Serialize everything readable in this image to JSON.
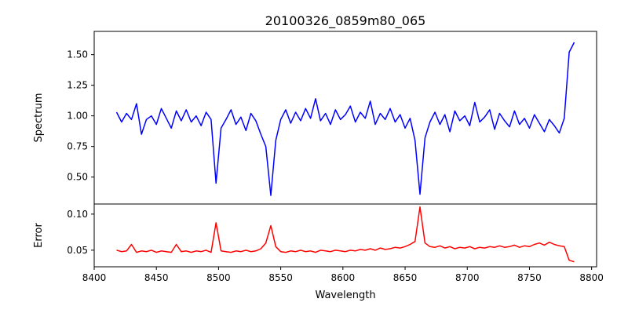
{
  "chart_data": {
    "type": "line",
    "title": "20100326_0859m80_065",
    "xlabel": "Wavelength",
    "xlim": [
      8400,
      8804
    ],
    "xticks": [
      8400,
      8450,
      8500,
      8550,
      8600,
      8650,
      8700,
      8750,
      8800
    ],
    "grid": false,
    "panels": [
      {
        "ylabel": "Spectrum",
        "ylim": [
          0.28,
          1.69
        ],
        "yticks": [
          "0.50",
          "0.75",
          "1.00",
          "1.25",
          "1.50"
        ],
        "color": "#0000ff",
        "series_name": "Spectrum"
      },
      {
        "ylabel": "Error",
        "ylim": [
          0.027,
          0.114
        ],
        "yticks": [
          "0.05",
          "0.10"
        ],
        "color": "#ff0000",
        "series_name": "Error"
      }
    ],
    "x": [
      8418,
      8422,
      8426,
      8430,
      8434,
      8438,
      8442,
      8446,
      8450,
      8454,
      8458,
      8462,
      8466,
      8470,
      8474,
      8478,
      8482,
      8486,
      8490,
      8494,
      8498,
      8502,
      8506,
      8510,
      8514,
      8518,
      8522,
      8526,
      8530,
      8534,
      8538,
      8542,
      8546,
      8550,
      8554,
      8558,
      8562,
      8566,
      8570,
      8574,
      8578,
      8582,
      8586,
      8590,
      8594,
      8598,
      8602,
      8606,
      8610,
      8614,
      8618,
      8622,
      8626,
      8630,
      8634,
      8638,
      8642,
      8646,
      8650,
      8654,
      8658,
      8662,
      8666,
      8670,
      8674,
      8678,
      8682,
      8686,
      8690,
      8694,
      8698,
      8702,
      8706,
      8710,
      8714,
      8718,
      8722,
      8726,
      8730,
      8734,
      8738,
      8742,
      8746,
      8750,
      8754,
      8758,
      8762,
      8766,
      8770,
      8774,
      8778,
      8782,
      8786
    ],
    "spectrum": [
      1.03,
      0.95,
      1.02,
      0.97,
      1.1,
      0.85,
      0.97,
      1.0,
      0.93,
      1.06,
      0.98,
      0.9,
      1.04,
      0.96,
      1.05,
      0.95,
      1.0,
      0.92,
      1.03,
      0.97,
      0.45,
      0.9,
      0.97,
      1.05,
      0.93,
      0.99,
      0.88,
      1.02,
      0.96,
      0.85,
      0.75,
      0.35,
      0.8,
      0.97,
      1.05,
      0.94,
      1.03,
      0.96,
      1.06,
      0.98,
      1.14,
      0.96,
      1.02,
      0.93,
      1.05,
      0.97,
      1.01,
      1.08,
      0.95,
      1.03,
      0.98,
      1.12,
      0.93,
      1.02,
      0.97,
      1.06,
      0.95,
      1.01,
      0.9,
      0.98,
      0.8,
      0.36,
      0.82,
      0.95,
      1.03,
      0.93,
      1.01,
      0.87,
      1.04,
      0.96,
      1.0,
      0.92,
      1.11,
      0.95,
      0.99,
      1.05,
      0.89,
      1.02,
      0.96,
      0.91,
      1.04,
      0.93,
      0.98,
      0.9,
      1.01,
      0.94,
      0.87,
      0.97,
      0.92,
      0.86,
      0.98,
      1.52,
      1.6
    ],
    "error": [
      0.05,
      0.048,
      0.049,
      0.058,
      0.047,
      0.049,
      0.048,
      0.05,
      0.047,
      0.049,
      0.048,
      0.047,
      0.058,
      0.048,
      0.049,
      0.047,
      0.049,
      0.048,
      0.05,
      0.047,
      0.088,
      0.049,
      0.048,
      0.047,
      0.049,
      0.048,
      0.05,
      0.048,
      0.049,
      0.052,
      0.06,
      0.084,
      0.055,
      0.048,
      0.047,
      0.049,
      0.048,
      0.05,
      0.048,
      0.049,
      0.047,
      0.05,
      0.049,
      0.048,
      0.05,
      0.049,
      0.048,
      0.05,
      0.049,
      0.051,
      0.05,
      0.052,
      0.05,
      0.053,
      0.051,
      0.052,
      0.054,
      0.053,
      0.055,
      0.058,
      0.062,
      0.11,
      0.06,
      0.055,
      0.054,
      0.056,
      0.053,
      0.055,
      0.052,
      0.054,
      0.053,
      0.055,
      0.052,
      0.054,
      0.053,
      0.055,
      0.054,
      0.056,
      0.054,
      0.055,
      0.057,
      0.054,
      0.056,
      0.055,
      0.058,
      0.06,
      0.057,
      0.061,
      0.058,
      0.056,
      0.055,
      0.036,
      0.034
    ]
  }
}
